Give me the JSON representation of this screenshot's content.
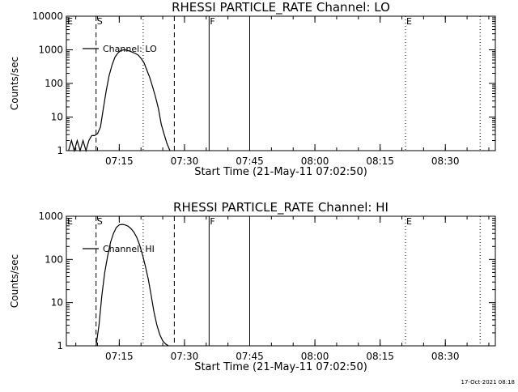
{
  "stamp": "17-Oct-2021 08:18",
  "chart_data": [
    {
      "type": "line",
      "title": "RHESSI PARTICLE_RATE Channel: LO",
      "xlabel": "Start Time (21-May-11 07:02:50)",
      "ylabel": "Counts/sec",
      "yscale": "log",
      "ylim": [
        1,
        10000
      ],
      "y_ticks": [
        {
          "value": 1,
          "label": "1"
        },
        {
          "value": 10,
          "label": "10"
        },
        {
          "value": 100,
          "label": "100"
        },
        {
          "value": 1000,
          "label": "1000"
        },
        {
          "value": 10000,
          "label": "10000"
        }
      ],
      "xlim": [
        "07:02:50",
        "08:41:30"
      ],
      "x_ticks": [
        "07:15",
        "07:30",
        "07:45",
        "08:00",
        "08:15",
        "08:30"
      ],
      "legend": {
        "entries": [
          "Channel: LO"
        ],
        "position": "top-left"
      },
      "grid": false,
      "markers": [
        {
          "label": "E",
          "time": "07:02:50",
          "style": "none"
        },
        {
          "label": "S",
          "time": "07:09:40",
          "style": "dashed"
        },
        {
          "label": "",
          "time": "07:20:30",
          "style": "dotted"
        },
        {
          "label": "",
          "time": "07:27:40",
          "style": "dashed"
        },
        {
          "label": "F",
          "time": "07:35:40",
          "style": "solid"
        },
        {
          "label": "",
          "time": "07:45:00",
          "style": "solid"
        },
        {
          "label": "E",
          "time": "08:20:50",
          "style": "dotted"
        },
        {
          "label": "",
          "time": "08:38:00",
          "style": "dotted"
        }
      ],
      "series": [
        {
          "name": "Channel: LO",
          "x": [
            "07:03:20",
            "07:04:00",
            "07:04:40",
            "07:05:20",
            "07:06:00",
            "07:06:40",
            "07:07:20",
            "07:08:00",
            "07:08:40",
            "07:09:20",
            "07:10:00",
            "07:10:40",
            "07:11:20",
            "07:12:00",
            "07:12:40",
            "07:13:20",
            "07:14:00",
            "07:14:40",
            "07:15:20",
            "07:16:00",
            "07:16:40",
            "07:17:20",
            "07:18:00",
            "07:18:40",
            "07:19:20",
            "07:20:00",
            "07:20:40",
            "07:21:20",
            "07:22:00",
            "07:22:40",
            "07:23:20",
            "07:24:00",
            "07:24:40",
            "07:25:20",
            "07:26:00",
            "07:26:40"
          ],
          "y": [
            1,
            2,
            1,
            2,
            1,
            2,
            1,
            2,
            2.8,
            2.8,
            3.2,
            5,
            18,
            60,
            170,
            350,
            600,
            800,
            950,
            1000,
            980,
            920,
            850,
            780,
            700,
            560,
            420,
            250,
            150,
            80,
            40,
            18,
            6,
            3,
            1.6,
            1
          ]
        }
      ]
    },
    {
      "type": "line",
      "title": "RHESSI PARTICLE_RATE Channel: HI",
      "xlabel": "Start Time (21-May-11 07:02:50)",
      "ylabel": "Counts/sec",
      "yscale": "log",
      "ylim": [
        1,
        1000
      ],
      "y_ticks": [
        {
          "value": 1,
          "label": "1"
        },
        {
          "value": 10,
          "label": "10"
        },
        {
          "value": 100,
          "label": "100"
        },
        {
          "value": 1000,
          "label": "1000"
        }
      ],
      "xlim": [
        "07:02:50",
        "08:41:30"
      ],
      "x_ticks": [
        "07:15",
        "07:30",
        "07:45",
        "08:00",
        "08:15",
        "08:30"
      ],
      "legend": {
        "entries": [
          "Channel: HI"
        ],
        "position": "top-left"
      },
      "grid": false,
      "markers": [
        {
          "label": "E",
          "time": "07:02:50",
          "style": "none"
        },
        {
          "label": "S",
          "time": "07:09:40",
          "style": "dashed"
        },
        {
          "label": "",
          "time": "07:20:30",
          "style": "dotted"
        },
        {
          "label": "",
          "time": "07:27:40",
          "style": "dashed"
        },
        {
          "label": "F",
          "time": "07:35:40",
          "style": "solid"
        },
        {
          "label": "",
          "time": "07:45:00",
          "style": "solid"
        },
        {
          "label": "E",
          "time": "08:20:50",
          "style": "dotted"
        },
        {
          "label": "",
          "time": "08:38:00",
          "style": "dotted"
        }
      ],
      "series": [
        {
          "name": "Channel: HI",
          "x": [
            "07:09:40",
            "07:10:20",
            "07:11:00",
            "07:11:40",
            "07:12:20",
            "07:13:00",
            "07:13:40",
            "07:14:20",
            "07:15:00",
            "07:15:40",
            "07:16:20",
            "07:17:00",
            "07:17:40",
            "07:18:20",
            "07:19:00",
            "07:19:40",
            "07:20:20",
            "07:21:00",
            "07:21:40",
            "07:22:20",
            "07:23:00",
            "07:23:40",
            "07:24:20",
            "07:25:00",
            "07:25:40",
            "07:26:20"
          ],
          "y": [
            1,
            3,
            15,
            50,
            120,
            250,
            400,
            550,
            630,
            650,
            630,
            590,
            520,
            430,
            330,
            220,
            130,
            70,
            35,
            15,
            6,
            3,
            1.8,
            1.3,
            1.1,
            1
          ]
        }
      ]
    }
  ]
}
